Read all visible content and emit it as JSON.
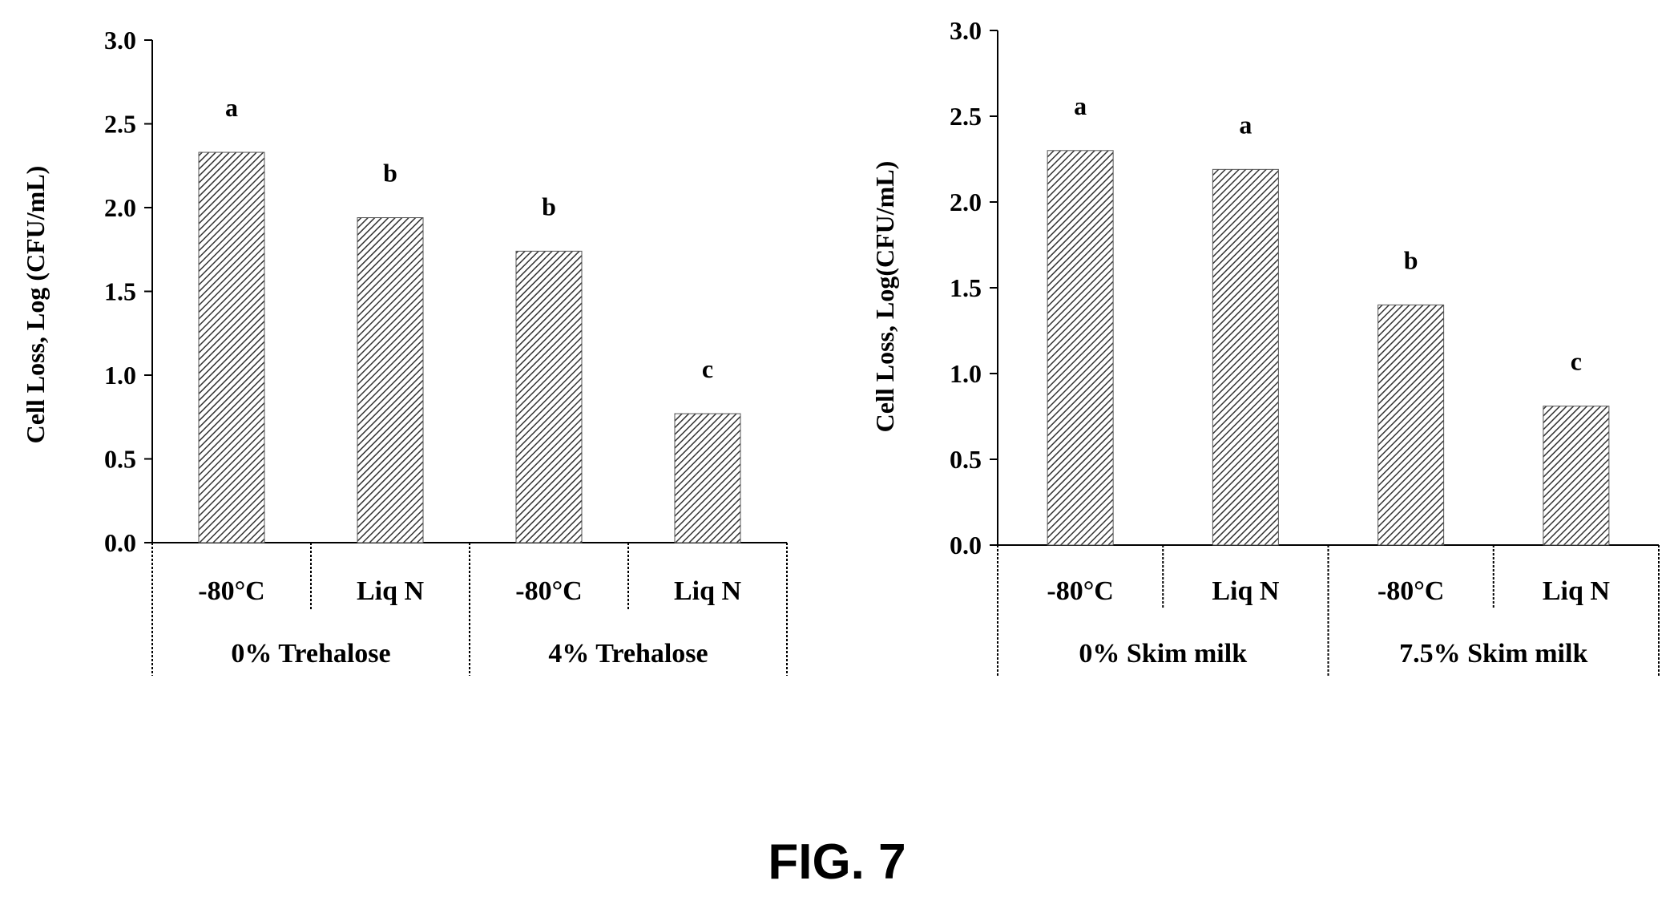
{
  "figure": {
    "caption": "FIG. 7"
  },
  "chart_data": [
    {
      "type": "bar",
      "title": "",
      "ylabel": "Cell Loss, Log (CFU/mL)",
      "ylim": [
        0,
        3.0
      ],
      "yticks": [
        "0.0",
        "0.5",
        "1.0",
        "1.5",
        "2.0",
        "2.5",
        "3.0"
      ],
      "categories": [
        "-80°C",
        "Liq N",
        "-80°C",
        "Liq N"
      ],
      "groups": [
        {
          "label": "0% Trehalose",
          "span": [
            0,
            1
          ]
        },
        {
          "label": "4% Trehalose",
          "span": [
            2,
            3
          ]
        }
      ],
      "values": [
        2.33,
        1.94,
        1.74,
        0.77
      ],
      "significance_letters": [
        "a",
        "b",
        "b",
        "c"
      ],
      "bar_fill": "diagonal hatch",
      "grid": false
    },
    {
      "type": "bar",
      "title": "",
      "ylabel": "Cell Loss, Log(CFU/mL)",
      "ylim": [
        0,
        3.0
      ],
      "yticks": [
        "0.0",
        "0.5",
        "1.0",
        "1.5",
        "2.0",
        "2.5",
        "3.0"
      ],
      "categories": [
        "-80°C",
        "Liq N",
        "-80°C",
        "Liq N"
      ],
      "groups": [
        {
          "label": "0% Skim milk",
          "span": [
            0,
            1
          ]
        },
        {
          "label": "7.5% Skim milk",
          "span": [
            2,
            3
          ]
        }
      ],
      "values": [
        2.3,
        2.19,
        1.4,
        0.81
      ],
      "significance_letters": [
        "a",
        "a",
        "b",
        "c"
      ],
      "bar_fill": "diagonal hatch",
      "grid": false
    }
  ]
}
